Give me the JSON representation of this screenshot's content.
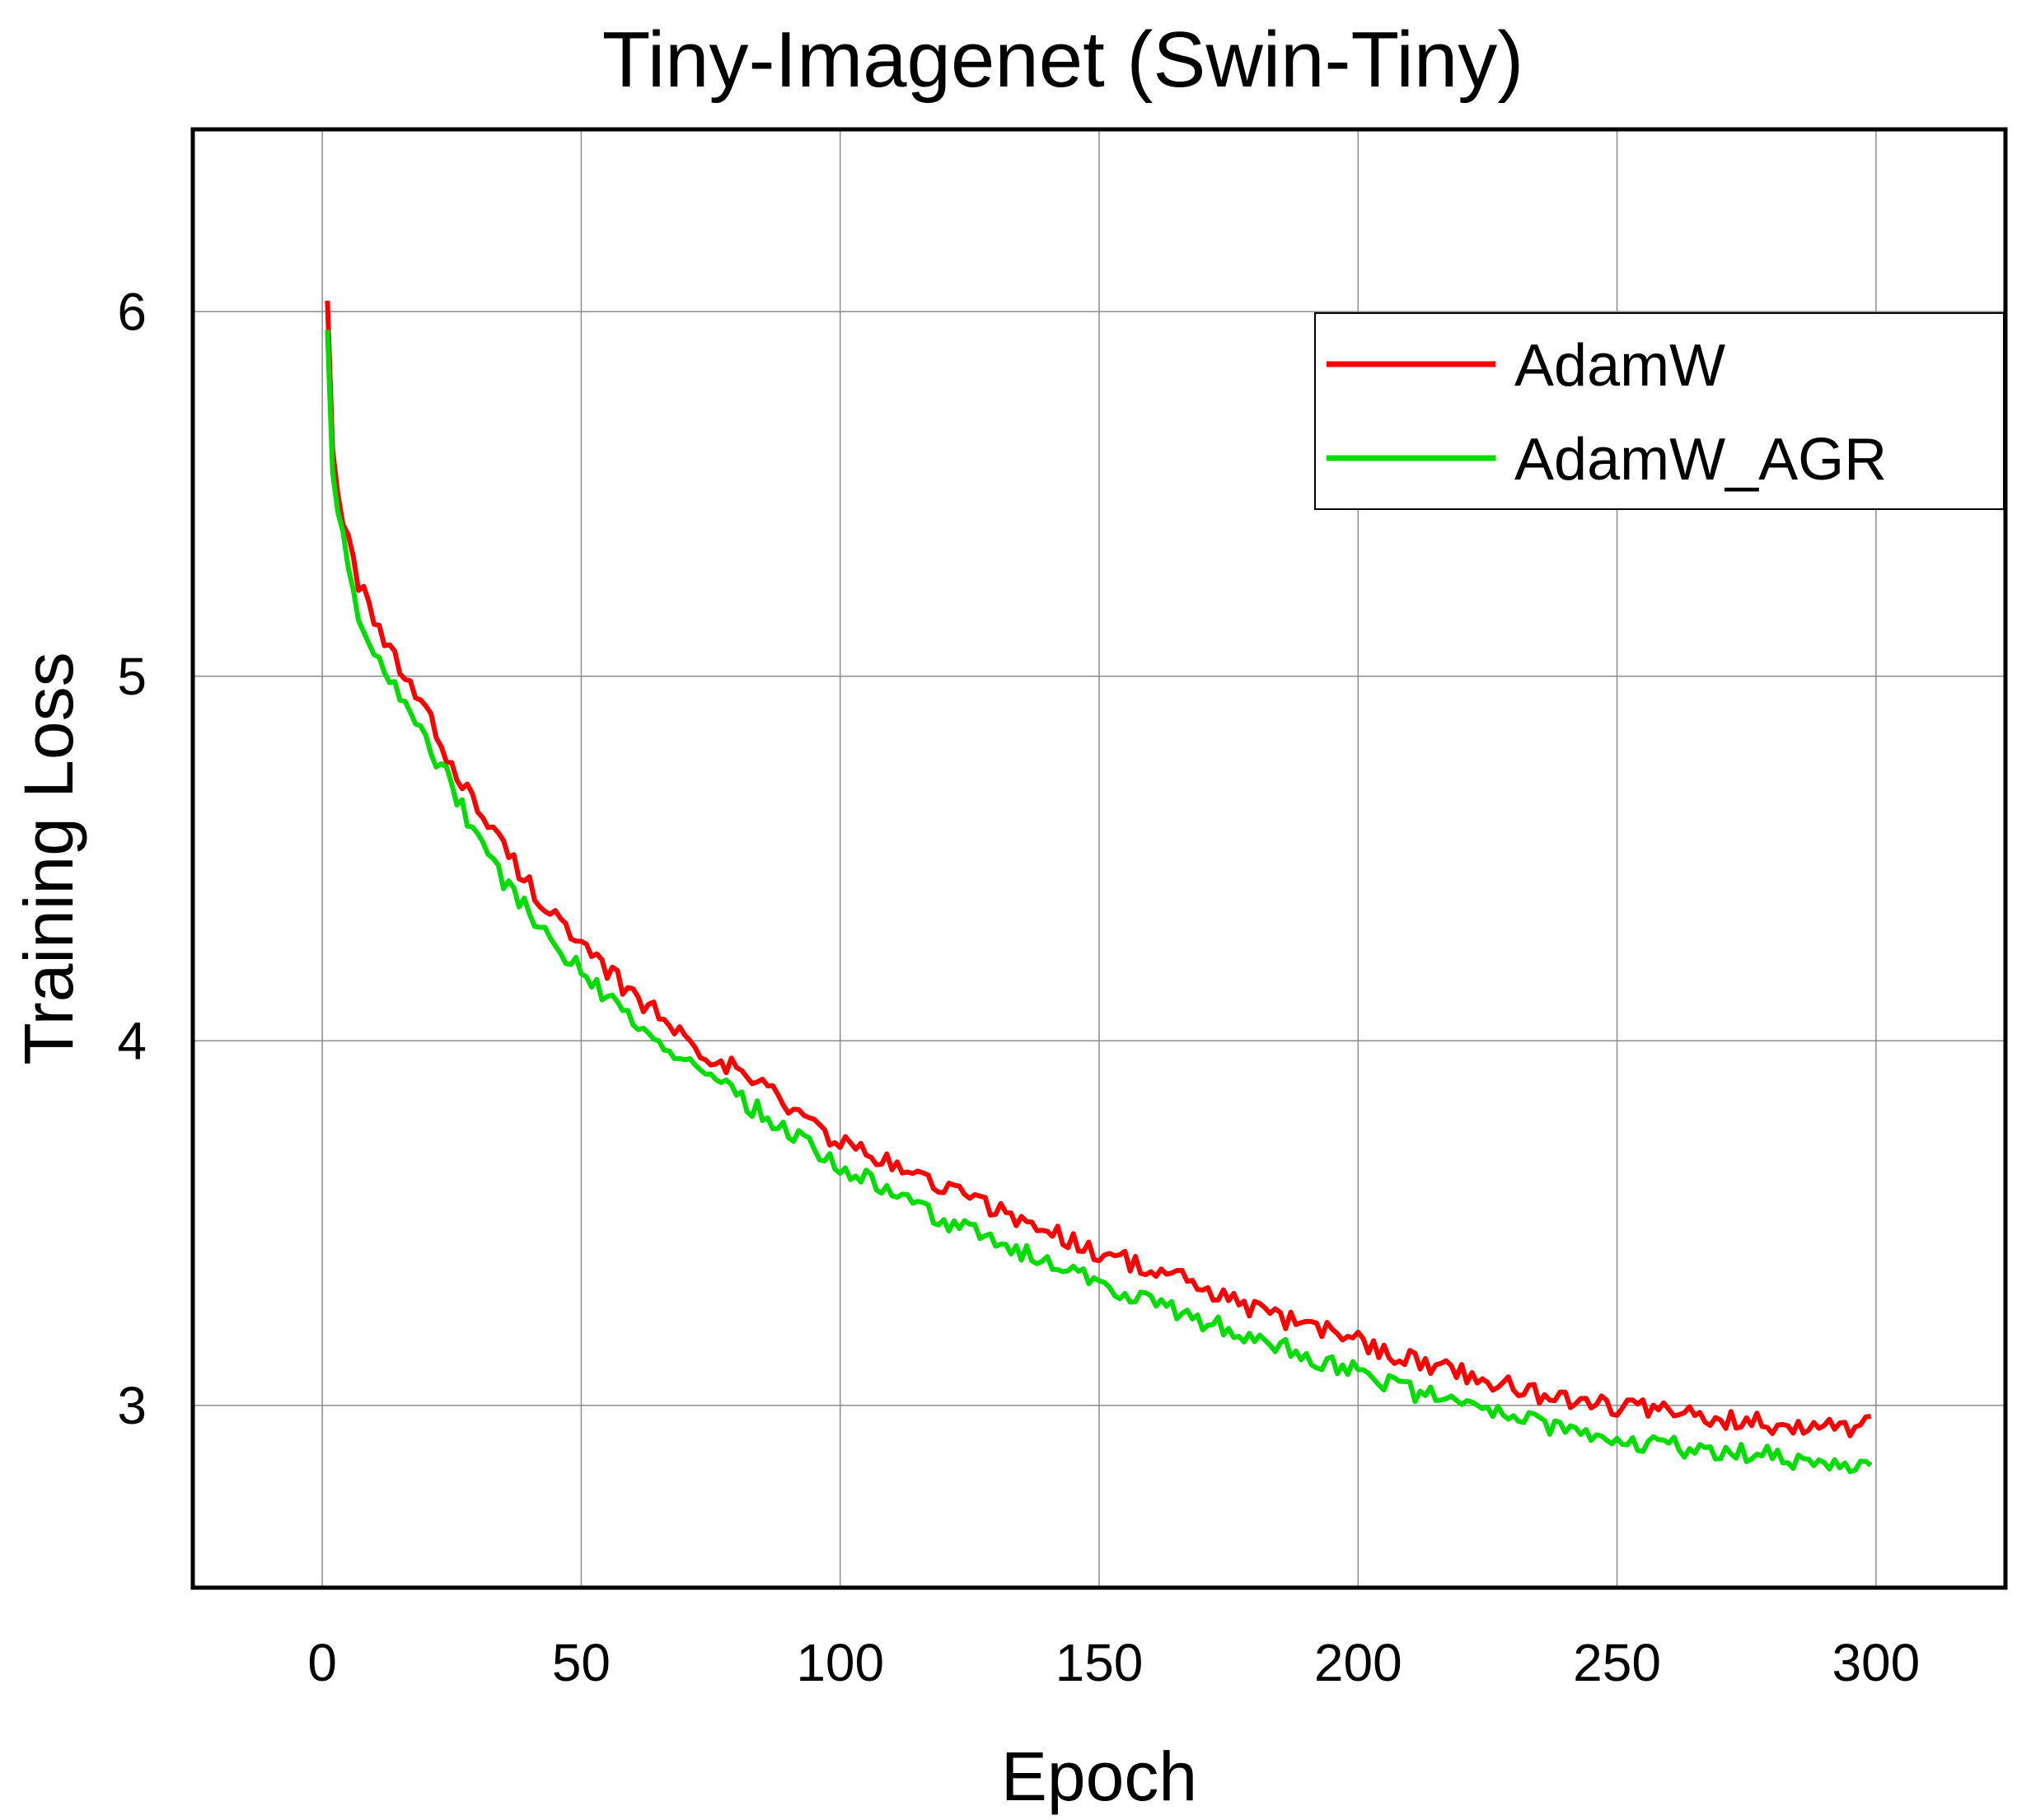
{
  "chart_data": {
    "type": "line",
    "title": "Tiny-Imagenet (Swin-Tiny)",
    "xlabel": "Epoch",
    "ylabel": "Training Loss",
    "xlim": [
      -25,
      325
    ],
    "ylim": [
      2.5,
      6.5
    ],
    "xticks": [
      0,
      50,
      100,
      150,
      200,
      250,
      300
    ],
    "yticks": [
      3,
      4,
      5,
      6
    ],
    "grid": true,
    "legend_position": "top-right",
    "x_start": 1,
    "x_end": 299,
    "series": [
      {
        "name": "AdamW",
        "color": "#ff0000",
        "points": [
          [
            1,
            6.03
          ],
          [
            2,
            5.62
          ],
          [
            3,
            5.5
          ],
          [
            5,
            5.38
          ],
          [
            7,
            5.26
          ],
          [
            10,
            5.14
          ],
          [
            15,
            5.02
          ],
          [
            20,
            4.9
          ],
          [
            25,
            4.76
          ],
          [
            30,
            4.64
          ],
          [
            35,
            4.53
          ],
          [
            40,
            4.43
          ],
          [
            45,
            4.34
          ],
          [
            50,
            4.25
          ],
          [
            55,
            4.19
          ],
          [
            60,
            4.13
          ],
          [
            65,
            4.07
          ],
          [
            70,
            4.01
          ],
          [
            75,
            3.96
          ],
          [
            80,
            3.92
          ],
          [
            85,
            3.88
          ],
          [
            90,
            3.82
          ],
          [
            95,
            3.77
          ],
          [
            100,
            3.72
          ],
          [
            105,
            3.69
          ],
          [
            110,
            3.66
          ],
          [
            115,
            3.63
          ],
          [
            120,
            3.6
          ],
          [
            125,
            3.57
          ],
          [
            130,
            3.54
          ],
          [
            135,
            3.51
          ],
          [
            140,
            3.48
          ],
          [
            145,
            3.45
          ],
          [
            150,
            3.42
          ],
          [
            155,
            3.4
          ],
          [
            160,
            3.37
          ],
          [
            165,
            3.35
          ],
          [
            170,
            3.32
          ],
          [
            175,
            3.29
          ],
          [
            180,
            3.26
          ],
          [
            185,
            3.24
          ],
          [
            190,
            3.22
          ],
          [
            195,
            3.2
          ],
          [
            200,
            3.18
          ],
          [
            205,
            3.15
          ],
          [
            210,
            3.13
          ],
          [
            215,
            3.11
          ],
          [
            220,
            3.09
          ],
          [
            225,
            3.07
          ],
          [
            230,
            3.05
          ],
          [
            235,
            3.03
          ],
          [
            240,
            3.02
          ],
          [
            245,
            3.01
          ],
          [
            250,
            3.0
          ],
          [
            255,
            2.99
          ],
          [
            260,
            2.98
          ],
          [
            265,
            2.97
          ],
          [
            270,
            2.96
          ],
          [
            275,
            2.96
          ],
          [
            280,
            2.95
          ],
          [
            285,
            2.95
          ],
          [
            290,
            2.94
          ],
          [
            295,
            2.94
          ],
          [
            299,
            2.95
          ]
        ]
      },
      {
        "name": "AdamW_AGR",
        "color": "#00dd00",
        "points": [
          [
            1,
            5.95
          ],
          [
            2,
            5.56
          ],
          [
            3,
            5.45
          ],
          [
            5,
            5.3
          ],
          [
            7,
            5.18
          ],
          [
            10,
            5.06
          ],
          [
            15,
            4.95
          ],
          [
            20,
            4.83
          ],
          [
            25,
            4.7
          ],
          [
            30,
            4.56
          ],
          [
            35,
            4.44
          ],
          [
            40,
            4.35
          ],
          [
            45,
            4.27
          ],
          [
            50,
            4.19
          ],
          [
            55,
            4.12
          ],
          [
            60,
            4.06
          ],
          [
            65,
            4.0
          ],
          [
            70,
            3.94
          ],
          [
            75,
            3.89
          ],
          [
            80,
            3.85
          ],
          [
            85,
            3.8
          ],
          [
            90,
            3.75
          ],
          [
            95,
            3.7
          ],
          [
            100,
            3.66
          ],
          [
            105,
            3.62
          ],
          [
            110,
            3.58
          ],
          [
            115,
            3.55
          ],
          [
            120,
            3.51
          ],
          [
            125,
            3.48
          ],
          [
            130,
            3.45
          ],
          [
            135,
            3.42
          ],
          [
            140,
            3.39
          ],
          [
            145,
            3.36
          ],
          [
            150,
            3.33
          ],
          [
            155,
            3.31
          ],
          [
            160,
            3.28
          ],
          [
            165,
            3.26
          ],
          [
            170,
            3.23
          ],
          [
            175,
            3.21
          ],
          [
            180,
            3.18
          ],
          [
            185,
            3.16
          ],
          [
            190,
            3.13
          ],
          [
            195,
            3.11
          ],
          [
            200,
            3.09
          ],
          [
            205,
            3.06
          ],
          [
            210,
            3.04
          ],
          [
            215,
            3.02
          ],
          [
            220,
            3.0
          ],
          [
            225,
            2.98
          ],
          [
            230,
            2.96
          ],
          [
            235,
            2.95
          ],
          [
            240,
            2.94
          ],
          [
            245,
            2.92
          ],
          [
            250,
            2.91
          ],
          [
            255,
            2.9
          ],
          [
            260,
            2.89
          ],
          [
            265,
            2.88
          ],
          [
            270,
            2.88
          ],
          [
            275,
            2.87
          ],
          [
            280,
            2.86
          ],
          [
            285,
            2.85
          ],
          [
            290,
            2.85
          ],
          [
            295,
            2.84
          ],
          [
            299,
            2.85
          ]
        ]
      }
    ]
  }
}
